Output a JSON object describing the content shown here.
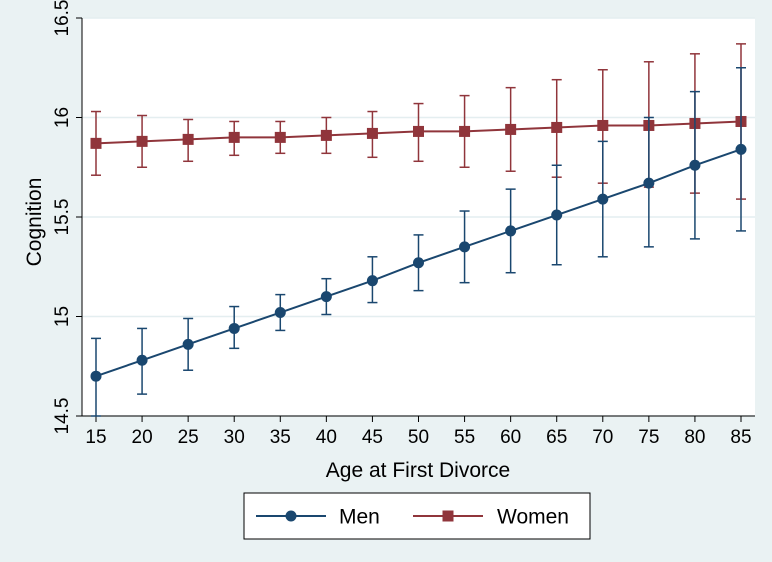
{
  "chart_data": {
    "type": "line",
    "title": "",
    "xlabel": "Age at First Divorce",
    "ylabel": "Cognition",
    "x": [
      15,
      20,
      25,
      30,
      35,
      40,
      45,
      50,
      55,
      60,
      65,
      70,
      75,
      80,
      85
    ],
    "x_tick_labels": [
      "15",
      "20",
      "25",
      "30",
      "35",
      "40",
      "45",
      "50",
      "55",
      "60",
      "65",
      "70",
      "75",
      "80",
      "85"
    ],
    "y_ticks": [
      14.5,
      15,
      15.5,
      16,
      16.5
    ],
    "y_tick_labels": [
      "14.5",
      "15",
      "15.5",
      "16",
      "16.5"
    ],
    "ylim": [
      14.5,
      16.5
    ],
    "grid": true,
    "legend_position": "bottom",
    "series": [
      {
        "name": "Men",
        "color": "#1a476f",
        "marker": "circle",
        "values": [
          14.7,
          14.78,
          14.86,
          14.94,
          15.02,
          15.1,
          15.18,
          15.27,
          15.35,
          15.43,
          15.51,
          15.59,
          15.67,
          15.76,
          15.84
        ],
        "lower": [
          14.5,
          14.61,
          14.73,
          14.84,
          14.93,
          15.01,
          15.07,
          15.13,
          15.17,
          15.22,
          15.26,
          15.3,
          15.35,
          15.39,
          15.43
        ],
        "upper": [
          14.89,
          14.94,
          14.99,
          15.05,
          15.11,
          15.19,
          15.3,
          15.41,
          15.53,
          15.64,
          15.76,
          15.88,
          16.0,
          16.13,
          16.25
        ]
      },
      {
        "name": "Women",
        "color": "#90353b",
        "marker": "square",
        "values": [
          15.87,
          15.88,
          15.89,
          15.9,
          15.9,
          15.91,
          15.92,
          15.93,
          15.93,
          15.94,
          15.95,
          15.96,
          15.96,
          15.97,
          15.98
        ],
        "lower": [
          15.71,
          15.75,
          15.78,
          15.81,
          15.82,
          15.82,
          15.8,
          15.78,
          15.75,
          15.73,
          15.7,
          15.67,
          15.65,
          15.62,
          15.59
        ],
        "upper": [
          16.03,
          16.01,
          15.99,
          15.98,
          15.98,
          16.0,
          16.03,
          16.07,
          16.11,
          16.15,
          16.19,
          16.24,
          16.28,
          16.32,
          16.37
        ]
      }
    ]
  }
}
